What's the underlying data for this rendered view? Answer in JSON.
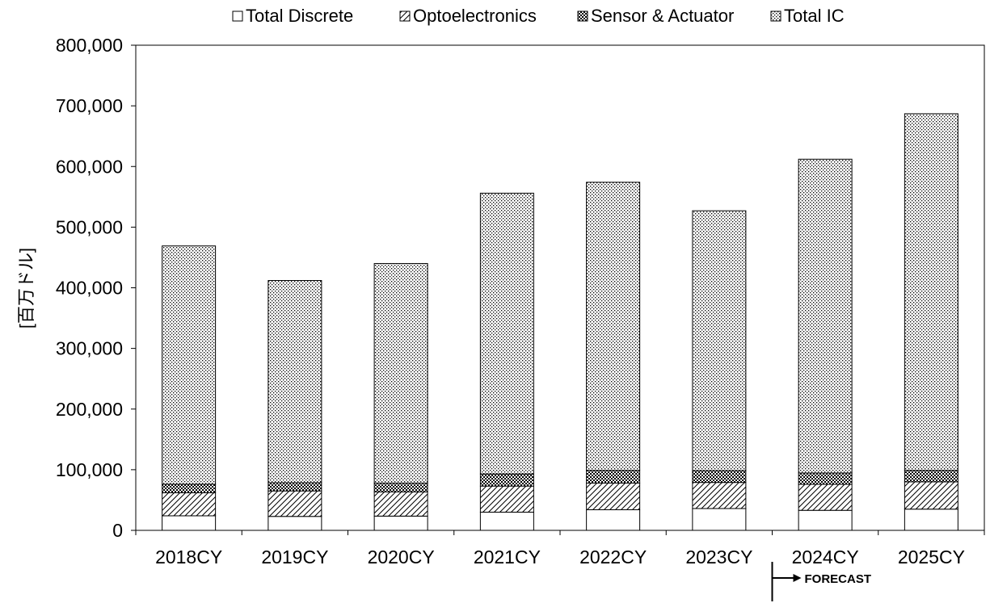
{
  "chart_data": {
    "type": "bar",
    "stacked": true,
    "categories": [
      "2018CY",
      "2019CY",
      "2020CY",
      "2021CY",
      "2022CY",
      "2023CY",
      "2024CY",
      "2025CY"
    ],
    "series": [
      {
        "name": "Total Discrete",
        "values": [
          24000,
          23000,
          23500,
          30000,
          34000,
          36000,
          33000,
          35000
        ]
      },
      {
        "name": "Optoelectronics",
        "values": [
          38000,
          42000,
          40000,
          43000,
          44000,
          43000,
          43000,
          45000
        ]
      },
      {
        "name": "Sensor & Actuator",
        "values": [
          14000,
          13500,
          14500,
          20000,
          21000,
          19500,
          18500,
          19000
        ]
      },
      {
        "name": "Total IC",
        "values": [
          393000,
          333500,
          362000,
          463000,
          475000,
          428500,
          517500,
          588000
        ]
      }
    ],
    "totals": [
      469000,
      412000,
      440000,
      556000,
      574000,
      527000,
      612000,
      687000
    ],
    "ylabel": "[百万ドル]",
    "xlabel": "",
    "ylim": [
      0,
      800000
    ],
    "yticks": [
      "0",
      "100,000",
      "200,000",
      "300,000",
      "400,000",
      "500,000",
      "600,000",
      "700,000",
      "800,000"
    ],
    "legend_position": "top",
    "forecast_label": "FORECAST",
    "forecast_start_category": "2024CY"
  }
}
